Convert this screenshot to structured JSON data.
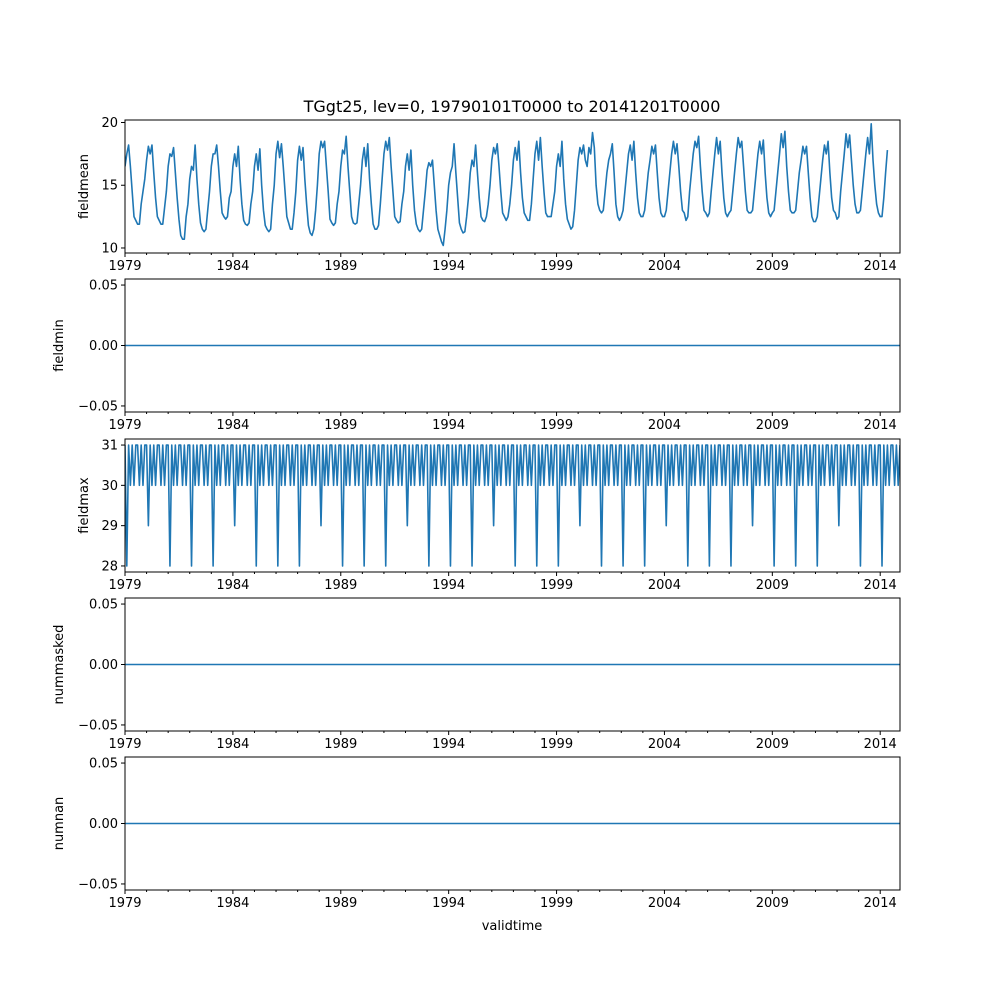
{
  "figure": {
    "title": "TGgt25, lev=0, 19790101T0000 to 20141201T0000",
    "xlabel": "validtime",
    "line_color": "#1f77b4"
  },
  "chart_data": [
    {
      "type": "line",
      "ylabel": "fieldmean",
      "xlim": [
        1979.0,
        2014.917
      ],
      "ylim": [
        9.6,
        20.2
      ],
      "yticks": [
        10,
        15,
        20
      ],
      "ytick_labels": [
        "10",
        "15",
        "20"
      ],
      "xtick_labels": [
        "1979",
        "1984",
        "1989",
        "1994",
        "1999",
        "2004",
        "2009",
        "2014"
      ],
      "x_start": 1979.0,
      "x_step": 0.0833333,
      "values": [
        16.5,
        17.5,
        18.2,
        16.5,
        14.5,
        12.5,
        12.2,
        11.9,
        11.9,
        13.5,
        14.5,
        15.5,
        17.0,
        18.1,
        17.5,
        18.2,
        16.0,
        14.0,
        12.5,
        12.2,
        11.9,
        11.9,
        13.2,
        14.5,
        16.5,
        17.5,
        17.3,
        18.0,
        16.0,
        14.0,
        12.3,
        11.0,
        10.7,
        10.7,
        12.5,
        13.5,
        15.5,
        16.5,
        16.2,
        18.2,
        15.5,
        13.5,
        12.0,
        11.5,
        11.3,
        11.5,
        13.0,
        14.5,
        16.5,
        17.5,
        17.5,
        18.2,
        16.5,
        14.5,
        12.8,
        12.5,
        12.3,
        12.5,
        14.0,
        14.5,
        16.5,
        17.5,
        16.5,
        18.1,
        15.5,
        13.5,
        12.2,
        11.9,
        11.8,
        12.0,
        13.5,
        14.5,
        16.5,
        17.5,
        16.2,
        17.9,
        15.0,
        13.0,
        11.8,
        11.5,
        11.3,
        11.5,
        13.5,
        15.0,
        17.5,
        18.5,
        17.2,
        18.3,
        16.5,
        14.5,
        12.5,
        12.0,
        11.5,
        11.5,
        12.8,
        14.5,
        17.0,
        18.1,
        17.0,
        18.0,
        15.5,
        13.5,
        11.8,
        11.2,
        11.0,
        11.5,
        13.0,
        15.0,
        17.5,
        18.5,
        18.0,
        18.5,
        16.5,
        14.5,
        12.3,
        12.0,
        11.8,
        12.0,
        13.5,
        14.5,
        16.5,
        17.8,
        17.5,
        18.9,
        16.5,
        14.5,
        12.5,
        12.0,
        11.9,
        12.0,
        13.5,
        15.0,
        17.0,
        18.0,
        16.5,
        18.3,
        15.5,
        13.5,
        11.9,
        11.5,
        11.5,
        11.8,
        13.5,
        15.5,
        17.5,
        18.5,
        17.8,
        18.8,
        16.5,
        14.5,
        12.5,
        12.2,
        12.0,
        12.1,
        13.5,
        14.5,
        16.5,
        17.5,
        16.2,
        17.8,
        15.0,
        13.0,
        11.9,
        11.5,
        11.3,
        11.5,
        13.0,
        14.5,
        16.2,
        16.8,
        16.5,
        17.0,
        15.0,
        13.0,
        11.5,
        11.0,
        10.5,
        10.2,
        11.5,
        13.0,
        15.0,
        16.0,
        16.5,
        18.3,
        16.0,
        14.0,
        12.0,
        11.5,
        11.2,
        11.3,
        12.5,
        14.0,
        16.0,
        17.0,
        16.5,
        18.2,
        16.0,
        14.0,
        12.5,
        12.2,
        12.1,
        12.5,
        13.5,
        15.0,
        17.0,
        18.0,
        17.5,
        18.3,
        16.5,
        14.5,
        12.8,
        12.5,
        12.2,
        12.5,
        13.5,
        15.0,
        17.0,
        18.0,
        17.0,
        18.5,
        16.0,
        14.0,
        12.8,
        12.5,
        12.2,
        12.2,
        13.5,
        15.5,
        17.5,
        18.5,
        17.0,
        18.8,
        16.5,
        14.5,
        12.8,
        12.5,
        12.5,
        12.5,
        13.5,
        14.5,
        16.5,
        17.5,
        16.5,
        18.5,
        15.5,
        13.5,
        12.3,
        11.9,
        11.5,
        11.7,
        13.0,
        15.0,
        17.0,
        18.0,
        17.5,
        18.2,
        17.0,
        16.5,
        18.0,
        17.5,
        19.2,
        18.0,
        15.0,
        13.5,
        13.0,
        12.8,
        13.0,
        14.5,
        16.0,
        17.0,
        17.5,
        18.3,
        16.0,
        13.5,
        12.5,
        12.2,
        12.5,
        13.0,
        14.5,
        16.0,
        17.5,
        18.2,
        17.0,
        18.5,
        16.0,
        14.0,
        12.8,
        12.5,
        12.5,
        13.0,
        14.5,
        16.0,
        17.0,
        18.1,
        17.5,
        18.2,
        16.0,
        14.0,
        12.8,
        12.5,
        12.5,
        13.0,
        14.5,
        16.0,
        17.5,
        18.5,
        17.5,
        18.3,
        16.5,
        14.5,
        13.0,
        12.8,
        12.2,
        12.5,
        14.5,
        16.0,
        17.5,
        18.5,
        18.0,
        18.9,
        16.5,
        14.5,
        13.0,
        12.8,
        12.5,
        12.8,
        14.5,
        16.0,
        17.5,
        18.8,
        17.5,
        18.5,
        16.0,
        14.0,
        12.8,
        12.5,
        12.8,
        13.0,
        14.5,
        16.0,
        17.5,
        18.8,
        18.0,
        18.5,
        16.5,
        14.5,
        13.0,
        12.8,
        12.8,
        13.0,
        14.5,
        16.0,
        17.5,
        18.5,
        17.5,
        18.6,
        16.0,
        14.0,
        12.8,
        12.5,
        12.8,
        13.0,
        14.5,
        16.0,
        17.5,
        19.1,
        18.0,
        19.3,
        16.5,
        14.5,
        13.0,
        12.8,
        12.8,
        13.0,
        14.5,
        16.0,
        17.0,
        18.1,
        17.5,
        18.1,
        16.0,
        14.0,
        12.5,
        12.1,
        12.1,
        12.5,
        14.0,
        15.5,
        17.0,
        18.2,
        17.5,
        18.5,
        16.0,
        14.0,
        13.0,
        12.8,
        12.3,
        12.5,
        14.5,
        16.0,
        17.5,
        19.1,
        18.0,
        19.0,
        17.0,
        15.0,
        13.5,
        12.8,
        12.8,
        13.0,
        14.5,
        16.0,
        17.5,
        18.8,
        17.5,
        19.9,
        17.0,
        15.0,
        13.5,
        12.8,
        12.5,
        12.5,
        14.0,
        16.0,
        17.8
      ]
    },
    {
      "type": "line",
      "ylabel": "fieldmin",
      "xlim": [
        1979.0,
        2014.917
      ],
      "ylim": [
        -0.055,
        0.055
      ],
      "yticks": [
        -0.05,
        0.0,
        0.05
      ],
      "ytick_labels": [
        "−0.05",
        "0.00",
        "0.05"
      ],
      "xtick_labels": [
        "1979",
        "1984",
        "1989",
        "1994",
        "1999",
        "2004",
        "2009",
        "2014"
      ],
      "x": [
        1979.0,
        2014.917
      ],
      "y": [
        0,
        0
      ]
    },
    {
      "type": "line",
      "ylabel": "fieldmax",
      "xlim": [
        1979.0,
        2014.917
      ],
      "ylim": [
        27.85,
        31.15
      ],
      "yticks": [
        28,
        29,
        30,
        31
      ],
      "ytick_labels": [
        "28",
        "29",
        "30",
        "31"
      ],
      "xtick_labels": [
        "1979",
        "1984",
        "1989",
        "1994",
        "1999",
        "2004",
        "2009",
        "2014"
      ],
      "x_start": 1979.0,
      "x_step": 0.0833333,
      "pattern": "days_in_month",
      "values_note": "monthly maxima equal days in month (31/30/28/29)"
    },
    {
      "type": "line",
      "ylabel": "nummasked",
      "xlim": [
        1979.0,
        2014.917
      ],
      "ylim": [
        -0.055,
        0.055
      ],
      "yticks": [
        -0.05,
        0.0,
        0.05
      ],
      "ytick_labels": [
        "−0.05",
        "0.00",
        "0.05"
      ],
      "xtick_labels": [
        "1979",
        "1984",
        "1989",
        "1994",
        "1999",
        "2004",
        "2009",
        "2014"
      ],
      "x": [
        1979.0,
        2014.917
      ],
      "y": [
        0,
        0
      ]
    },
    {
      "type": "line",
      "ylabel": "numnan",
      "xlim": [
        1979.0,
        2014.917
      ],
      "ylim": [
        -0.055,
        0.055
      ],
      "yticks": [
        -0.05,
        0.0,
        0.05
      ],
      "ytick_labels": [
        "−0.05",
        "0.00",
        "0.05"
      ],
      "xtick_labels": [
        "1979",
        "1984",
        "1989",
        "1994",
        "1999",
        "2004",
        "2009",
        "2014"
      ],
      "x": [
        1979.0,
        2014.917
      ],
      "y": [
        0,
        0
      ]
    }
  ]
}
